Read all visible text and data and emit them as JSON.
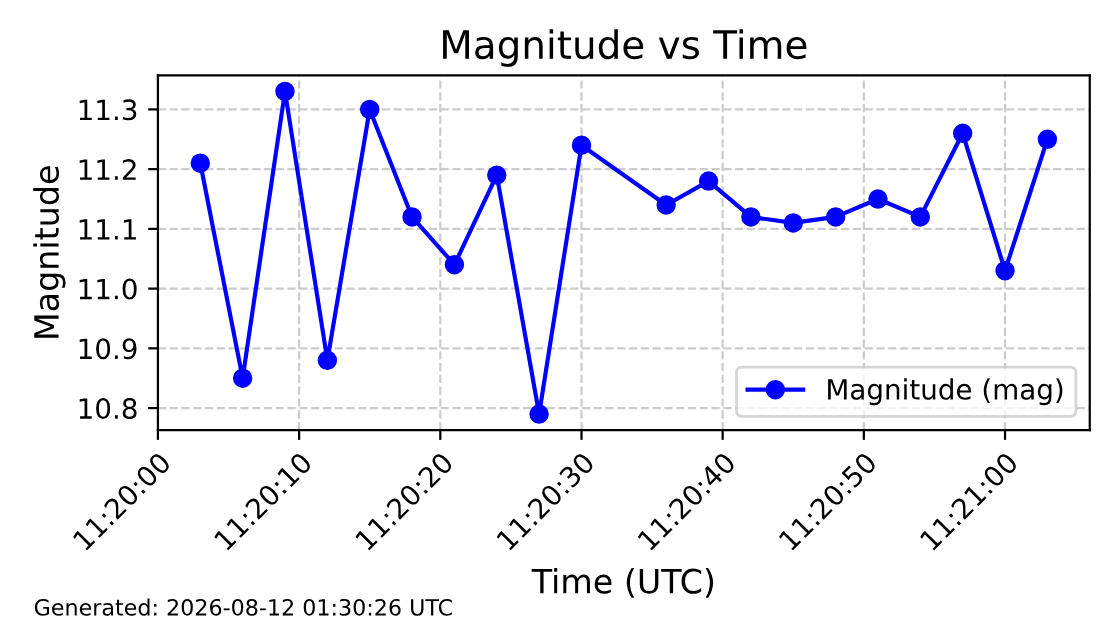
{
  "chart_data": {
    "type": "line",
    "title": "Magnitude vs Time",
    "xlabel": "Time (UTC)",
    "ylabel": "Magnitude",
    "x": [
      11.334167,
      11.335,
      11.335833,
      11.336667,
      11.3375,
      11.338333,
      11.339167,
      11.34,
      11.340833,
      11.341667,
      11.343333,
      11.344167,
      11.345,
      11.345833,
      11.346667,
      11.3475,
      11.348333,
      11.349167,
      11.35,
      11.350833
    ],
    "series": [
      {
        "name": "Magnitude (mag)",
        "color": "#0000ff",
        "values": [
          11.21,
          10.85,
          11.33,
          10.88,
          11.3,
          11.12,
          11.04,
          11.19,
          10.79,
          11.24,
          11.14,
          11.18,
          11.12,
          11.11,
          11.12,
          11.15,
          11.12,
          11.26,
          11.03,
          11.25
        ]
      }
    ],
    "xlim": [
      11.333333,
      11.351667
    ],
    "xticks": [
      {
        "value": 11.333333,
        "label": "11:20:00"
      },
      {
        "value": 11.336111,
        "label": "11:20:10"
      },
      {
        "value": 11.338889,
        "label": "11:20:20"
      },
      {
        "value": 11.341667,
        "label": "11:20:30"
      },
      {
        "value": 11.344444,
        "label": "11:20:40"
      },
      {
        "value": 11.347222,
        "label": "11:20:50"
      },
      {
        "value": 11.35,
        "label": "11:21:00"
      }
    ],
    "ylim": [
      10.763,
      11.357
    ],
    "yticks": [
      10.8,
      10.9,
      {
        "value": 11,
        "label": "11.0"
      },
      11.1,
      11.2,
      11.3
    ],
    "grid": true,
    "legend": "bottom right",
    "marker": "circle",
    "line_style": "solid",
    "annotations": [
      "Generated: 2026-08-12 01:30:26 UTC"
    ]
  }
}
